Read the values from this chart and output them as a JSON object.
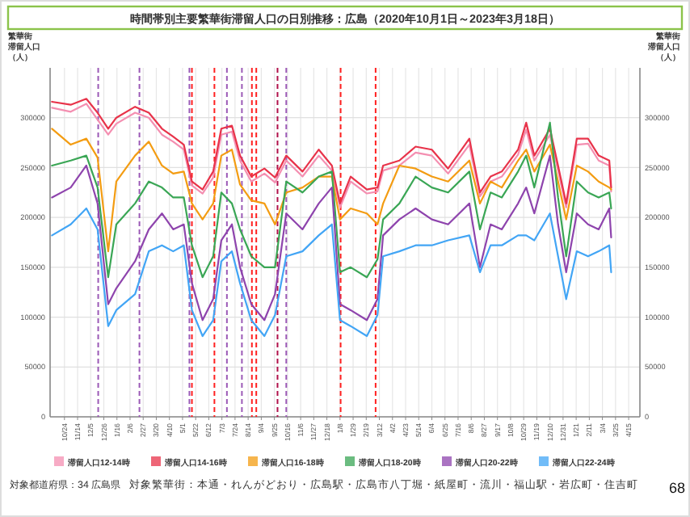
{
  "chart_data": {
    "type": "line",
    "title": "時間帯別主要繁華街滞留人口の日別推移：広島（2020年10月1日～2023年3月18日）",
    "ylabel": "繁華街滞留人口（人）",
    "y2label": "繁華街滞留人口（人）",
    "x": [
      "2020-10-04",
      "2020-11-03",
      "2020-11-28",
      "2020-12-16",
      "2021-01-02",
      "2021-01-15",
      "2021-02-14",
      "2021-03-08",
      "2021-03-29",
      "2021-04-16",
      "2021-05-03",
      "2021-05-16",
      "2021-06-02",
      "2021-06-19",
      "2021-07-02",
      "2021-07-19",
      "2021-08-01",
      "2021-08-19",
      "2021-09-09",
      "2021-09-26",
      "2021-10-14",
      "2021-11-09",
      "2021-12-05",
      "2021-12-26",
      "2022-01-08",
      "2022-01-25",
      "2022-02-20",
      "2022-03-09",
      "2022-03-18",
      "2022-04-13",
      "2022-05-09",
      "2022-06-04",
      "2022-06-30",
      "2022-08-03",
      "2022-08-20",
      "2022-09-06",
      "2022-09-24",
      "2022-10-20",
      "2022-11-02",
      "2022-11-15",
      "2022-12-10",
      "2022-12-23",
      "2023-01-05",
      "2023-01-22",
      "2023-02-09",
      "2023-02-26",
      "2023-03-15",
      "2023-03-18"
    ],
    "series": [
      {
        "name": "滞留人口12-14時",
        "color": "#f48fb1",
        "values": [
          310000,
          306000,
          314000,
          298000,
          283000,
          294000,
          305000,
          300000,
          283000,
          276000,
          268000,
          232000,
          224000,
          240000,
          283000,
          286000,
          257000,
          236000,
          244000,
          235000,
          257000,
          241000,
          262000,
          247000,
          210000,
          236000,
          224000,
          226000,
          247000,
          252000,
          265000,
          262000,
          244000,
          273000,
          221000,
          236000,
          241000,
          263000,
          288000,
          257000,
          283000,
          247000,
          210000,
          273000,
          274000,
          257000,
          252000,
          226000
        ]
      },
      {
        "name": "滞留人口14-16時",
        "color": "#e8334a",
        "values": [
          316000,
          313000,
          319000,
          305000,
          289000,
          300000,
          311000,
          305000,
          289000,
          281000,
          273000,
          236000,
          228000,
          246000,
          289000,
          292000,
          262000,
          241000,
          249000,
          240000,
          262000,
          246000,
          268000,
          252000,
          214000,
          241000,
          228000,
          230000,
          252000,
          257000,
          271000,
          268000,
          249000,
          279000,
          225000,
          241000,
          246000,
          268000,
          295000,
          262000,
          289000,
          252000,
          214000,
          279000,
          279000,
          262000,
          257000,
          230000
        ]
      },
      {
        "name": "滞留人口16-18時",
        "color": "#f39c12",
        "values": [
          289000,
          273000,
          279000,
          260000,
          166000,
          236000,
          262000,
          276000,
          252000,
          244000,
          246000,
          214000,
          198000,
          214000,
          262000,
          268000,
          233000,
          217000,
          214000,
          193000,
          225000,
          230000,
          241000,
          241000,
          198000,
          209000,
          204000,
          193000,
          214000,
          252000,
          249000,
          241000,
          236000,
          257000,
          214000,
          236000,
          230000,
          257000,
          268000,
          246000,
          273000,
          236000,
          198000,
          252000,
          246000,
          236000,
          230000,
          228000
        ]
      },
      {
        "name": "滞留人口18-20時",
        "color": "#3aa655",
        "values": [
          252000,
          257000,
          262000,
          230000,
          140000,
          193000,
          214000,
          236000,
          230000,
          220000,
          220000,
          172000,
          140000,
          161000,
          225000,
          214000,
          188000,
          161000,
          150000,
          150000,
          236000,
          225000,
          241000,
          246000,
          145000,
          150000,
          140000,
          158000,
          198000,
          214000,
          241000,
          230000,
          225000,
          246000,
          188000,
          225000,
          220000,
          246000,
          262000,
          230000,
          295000,
          220000,
          161000,
          236000,
          225000,
          220000,
          225000,
          209000
        ]
      },
      {
        "name": "滞留人口20-22時",
        "color": "#8e44ad",
        "values": [
          220000,
          230000,
          252000,
          214000,
          113000,
          129000,
          156000,
          188000,
          204000,
          188000,
          193000,
          134000,
          97000,
          118000,
          177000,
          193000,
          150000,
          113000,
          97000,
          123000,
          204000,
          188000,
          214000,
          230000,
          113000,
          107000,
          97000,
          118000,
          182000,
          198000,
          209000,
          198000,
          193000,
          214000,
          150000,
          193000,
          188000,
          214000,
          230000,
          204000,
          262000,
          193000,
          145000,
          204000,
          193000,
          188000,
          209000,
          180000
        ]
      },
      {
        "name": "滞留人口22-24時",
        "color": "#42a5f5",
        "values": [
          182000,
          193000,
          209000,
          188000,
          91000,
          107000,
          123000,
          166000,
          172000,
          166000,
          172000,
          107000,
          81000,
          97000,
          156000,
          166000,
          134000,
          97000,
          81000,
          102000,
          161000,
          166000,
          182000,
          193000,
          97000,
          91000,
          81000,
          102000,
          161000,
          166000,
          172000,
          172000,
          177000,
          182000,
          145000,
          172000,
          172000,
          182000,
          182000,
          177000,
          204000,
          161000,
          118000,
          166000,
          161000,
          166000,
          172000,
          145000
        ]
      }
    ],
    "xlim": [
      "2020-10-01",
      "2023-05-03"
    ],
    "xticks": [
      {
        "value": "2020-10-24",
        "label": "10/24"
      },
      {
        "value": "2020-11-14",
        "label": "11/14"
      },
      {
        "value": "2020-12-05",
        "label": "12/5"
      },
      {
        "value": "2020-12-26",
        "label": "12/26"
      },
      {
        "value": "2021-01-16",
        "label": "1/16"
      },
      {
        "value": "2021-02-06",
        "label": "2/6"
      },
      {
        "value": "2021-02-27",
        "label": "2/27"
      },
      {
        "value": "2021-03-20",
        "label": "3/20"
      },
      {
        "value": "2021-04-10",
        "label": "4/10"
      },
      {
        "value": "2021-05-01",
        "label": "5/1"
      },
      {
        "value": "2021-05-22",
        "label": "5/22"
      },
      {
        "value": "2021-06-12",
        "label": "6/12"
      },
      {
        "value": "2021-07-03",
        "label": "7/3"
      },
      {
        "value": "2021-07-24",
        "label": "7/24"
      },
      {
        "value": "2021-08-14",
        "label": "8/14"
      },
      {
        "value": "2021-09-04",
        "label": "9/4"
      },
      {
        "value": "2021-09-25",
        "label": "9/25"
      },
      {
        "value": "2021-10-16",
        "label": "10/16"
      },
      {
        "value": "2021-11-06",
        "label": "11/6"
      },
      {
        "value": "2021-11-27",
        "label": "11/27"
      },
      {
        "value": "2021-12-18",
        "label": "12/18"
      },
      {
        "value": "2022-01-08",
        "label": "1/8"
      },
      {
        "value": "2022-01-29",
        "label": "1/29"
      },
      {
        "value": "2022-02-19",
        "label": "2/19"
      },
      {
        "value": "2022-03-12",
        "label": "3/12"
      },
      {
        "value": "2022-04-02",
        "label": "4/2"
      },
      {
        "value": "2022-04-23",
        "label": "4/23"
      },
      {
        "value": "2022-05-14",
        "label": "5/14"
      },
      {
        "value": "2022-06-04",
        "label": "6/4"
      },
      {
        "value": "2022-06-25",
        "label": "6/25"
      },
      {
        "value": "2022-07-16",
        "label": "7/16"
      },
      {
        "value": "2022-08-06",
        "label": "8/6"
      },
      {
        "value": "2022-08-27",
        "label": "8/27"
      },
      {
        "value": "2022-09-17",
        "label": "9/17"
      },
      {
        "value": "2022-10-08",
        "label": "10/8"
      },
      {
        "value": "2022-10-29",
        "label": "10/29"
      },
      {
        "value": "2022-11-19",
        "label": "11/19"
      },
      {
        "value": "2022-12-10",
        "label": "12/10"
      },
      {
        "value": "2022-12-31",
        "label": "12/31"
      },
      {
        "value": "2023-01-21",
        "label": "1/21"
      },
      {
        "value": "2023-02-11",
        "label": "2/11"
      },
      {
        "value": "2023-03-04",
        "label": "3/4"
      },
      {
        "value": "2023-03-25",
        "label": "3/25"
      },
      {
        "value": "2023-04-15",
        "label": "4/15"
      }
    ],
    "ylim": [
      0,
      350000
    ],
    "yticks": [
      0,
      50000,
      100000,
      150000,
      200000,
      250000,
      300000
    ],
    "y2lim": [
      0,
      350000
    ],
    "y2ticks": [
      0,
      50000,
      100000,
      150000,
      200000,
      250000,
      300000
    ],
    "grid": true,
    "legend": "bottom",
    "ref_lines": [
      {
        "axis": "x",
        "value": "2020-12-17",
        "color": "#9b59b6",
        "line_style": "dashed"
      },
      {
        "axis": "x",
        "value": "2021-02-21",
        "color": "#9b59b6",
        "line_style": "dashed"
      },
      {
        "axis": "x",
        "value": "2021-05-12",
        "color": "#9b59b6",
        "line_style": "dashed"
      },
      {
        "axis": "x",
        "value": "2021-05-16",
        "color": "#ff2020",
        "line_style": "dashed"
      },
      {
        "axis": "x",
        "value": "2021-06-21",
        "color": "#ff2020",
        "line_style": "dashed"
      },
      {
        "axis": "x",
        "value": "2021-07-11",
        "color": "#9b59b6",
        "line_style": "dashed"
      },
      {
        "axis": "x",
        "value": "2021-08-04",
        "color": "#9b59b6",
        "line_style": "dashed"
      },
      {
        "axis": "x",
        "value": "2021-08-20",
        "color": "#ff2020",
        "line_style": "dashed"
      },
      {
        "axis": "x",
        "value": "2021-08-27",
        "color": "#ff2020",
        "line_style": "dashed"
      },
      {
        "axis": "x",
        "value": "2021-09-30",
        "color": "#b0104a",
        "line_style": "dashed"
      },
      {
        "axis": "x",
        "value": "2021-10-14",
        "color": "#9b59b6",
        "line_style": "dashed"
      },
      {
        "axis": "x",
        "value": "2022-01-09",
        "color": "#ff2020",
        "line_style": "dashed"
      },
      {
        "axis": "x",
        "value": "2022-03-06",
        "color": "#ff2020",
        "line_style": "dashed"
      }
    ],
    "annotations": [
      "対象都道府県：34 広島県",
      "対象繁華街：本通・れんがどおり・広島駅・広島市八丁堀・紙屋町・流川・福山駅・岩広町・住吉町",
      "68"
    ]
  }
}
